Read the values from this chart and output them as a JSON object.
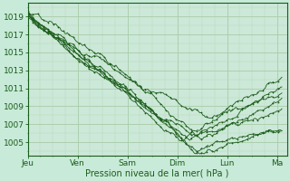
{
  "title": "",
  "xlabel": "Pression niveau de la mer( hPa )",
  "ylabel": "",
  "bg_color": "#c8ead8",
  "plot_bg_color": "#cce8d8",
  "grid_color_major": "#a8cca8",
  "grid_color_minor": "#b8d8b8",
  "line_color": "#1a5c1a",
  "ylim": [
    1003.5,
    1020.5
  ],
  "yticks": [
    1005,
    1007,
    1009,
    1011,
    1013,
    1015,
    1017,
    1019
  ],
  "xtick_labels": [
    "Jeu",
    "Ven",
    "Sam",
    "Dim",
    "Lun",
    "Ma"
  ],
  "xtick_pos": [
    0,
    1,
    2,
    3,
    4,
    5
  ],
  "xlim": [
    0,
    5.2
  ],
  "n_points": 200,
  "n_lines": 7
}
